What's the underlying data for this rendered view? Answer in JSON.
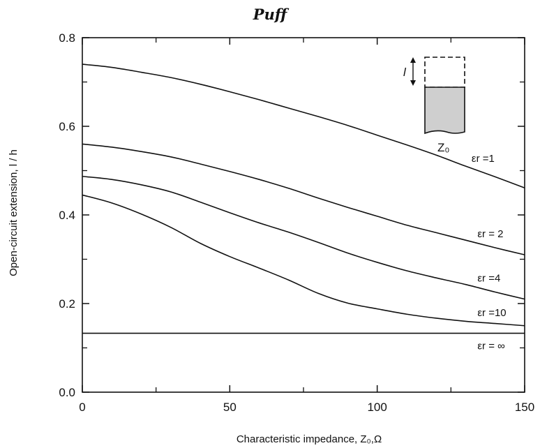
{
  "page": {
    "title": "Puff"
  },
  "chart_data": {
    "type": "line",
    "title": "",
    "xlabel": "Characteristic impedance, Z₀,Ω",
    "ylabel": "Open-circuit extension, l / h",
    "xlim": [
      0,
      150
    ],
    "ylim": [
      0.0,
      0.8
    ],
    "x_ticks": [
      0,
      50,
      100,
      150
    ],
    "x_tick_labels": [
      "0",
      "50",
      "100",
      "150"
    ],
    "y_ticks": [
      0.0,
      0.2,
      0.4,
      0.6,
      0.8
    ],
    "y_tick_labels": [
      "0.0",
      "0.2",
      "0.4",
      "0.6",
      "0.8"
    ],
    "grid": false,
    "series": [
      {
        "name": "εr =1",
        "x": [
          0,
          10,
          20,
          30,
          40,
          50,
          60,
          70,
          80,
          90,
          100,
          110,
          120,
          130,
          140,
          150
        ],
        "y": [
          0.74,
          0.733,
          0.722,
          0.71,
          0.695,
          0.678,
          0.66,
          0.641,
          0.622,
          0.602,
          0.58,
          0.558,
          0.535,
          0.51,
          0.486,
          0.461
        ]
      },
      {
        "name": "εr = 2",
        "x": [
          0,
          10,
          20,
          30,
          40,
          50,
          60,
          70,
          80,
          90,
          100,
          110,
          120,
          130,
          140,
          150
        ],
        "y": [
          0.56,
          0.553,
          0.543,
          0.531,
          0.515,
          0.498,
          0.48,
          0.46,
          0.438,
          0.417,
          0.397,
          0.377,
          0.36,
          0.343,
          0.326,
          0.31
        ]
      },
      {
        "name": "εr =4",
        "x": [
          0,
          10,
          20,
          30,
          40,
          50,
          60,
          70,
          80,
          90,
          100,
          110,
          120,
          130,
          140,
          150
        ],
        "y": [
          0.487,
          0.48,
          0.468,
          0.452,
          0.429,
          0.405,
          0.382,
          0.361,
          0.338,
          0.314,
          0.293,
          0.274,
          0.258,
          0.243,
          0.226,
          0.21
        ]
      },
      {
        "name": "εr =10",
        "x": [
          0,
          10,
          20,
          30,
          40,
          50,
          60,
          70,
          80,
          90,
          100,
          110,
          120,
          130,
          140,
          150
        ],
        "y": [
          0.445,
          0.427,
          0.402,
          0.372,
          0.336,
          0.306,
          0.28,
          0.253,
          0.223,
          0.201,
          0.188,
          0.176,
          0.167,
          0.16,
          0.155,
          0.15
        ]
      },
      {
        "name": "εr = ∞",
        "x": [
          0,
          150
        ],
        "y": [
          0.133,
          0.133
        ]
      }
    ],
    "inset": {
      "length_label": "l",
      "impedance_label": "Z₀"
    }
  }
}
